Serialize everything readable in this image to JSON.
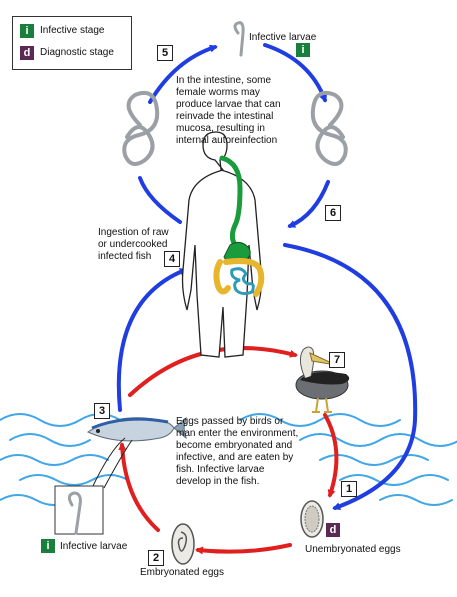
{
  "legend": {
    "infective_letter": "i",
    "infective_label": "Infective stage",
    "infective_color": "#1a7f3c",
    "diagnostic_letter": "d",
    "diagnostic_label": "Diagnostic stage",
    "diagnostic_color": "#5a2a55"
  },
  "arrows": {
    "human_cycle_color": "#1f3de0",
    "bird_cycle_color": "#e01f1f"
  },
  "steps": {
    "s1": "1",
    "s2": "2",
    "s3": "3",
    "s4": "4",
    "s5": "5",
    "s6": "6",
    "s7": "7"
  },
  "labels": {
    "infective_larvae_top": "Infective larvae",
    "intestine_l1": "In the intestine, some",
    "intestine_l2": "female worms may",
    "intestine_l3": "produce larvae that can",
    "intestine_l4": "reinvade the intestinal",
    "intestine_l5": "mucosa, resulting in",
    "intestine_l6": "internal autoreinfection",
    "ingestion_l1": "Ingestion of raw",
    "ingestion_l2": "or undercooked",
    "ingestion_l3": "infected fish",
    "eggs_l1": "Eggs passed by birds or",
    "eggs_l2": "man enter the environment,",
    "eggs_l3": "become embryonated and",
    "eggs_l4": "infective, and are eaten by",
    "eggs_l5": "fish. Infective larvae",
    "eggs_l6": "develop in the fish.",
    "infective_larvae_bottom": "Infective larvae",
    "unembryonated_eggs": "Unembryonated eggs",
    "embryonated_eggs": "Embryonated eggs"
  },
  "icons": {
    "worm": "coiled-worm-icon",
    "body": "human-body-icon",
    "bird": "pelican-icon",
    "fish": "fish-icon",
    "egg": "egg-icon",
    "water": "water-waves-icon"
  }
}
